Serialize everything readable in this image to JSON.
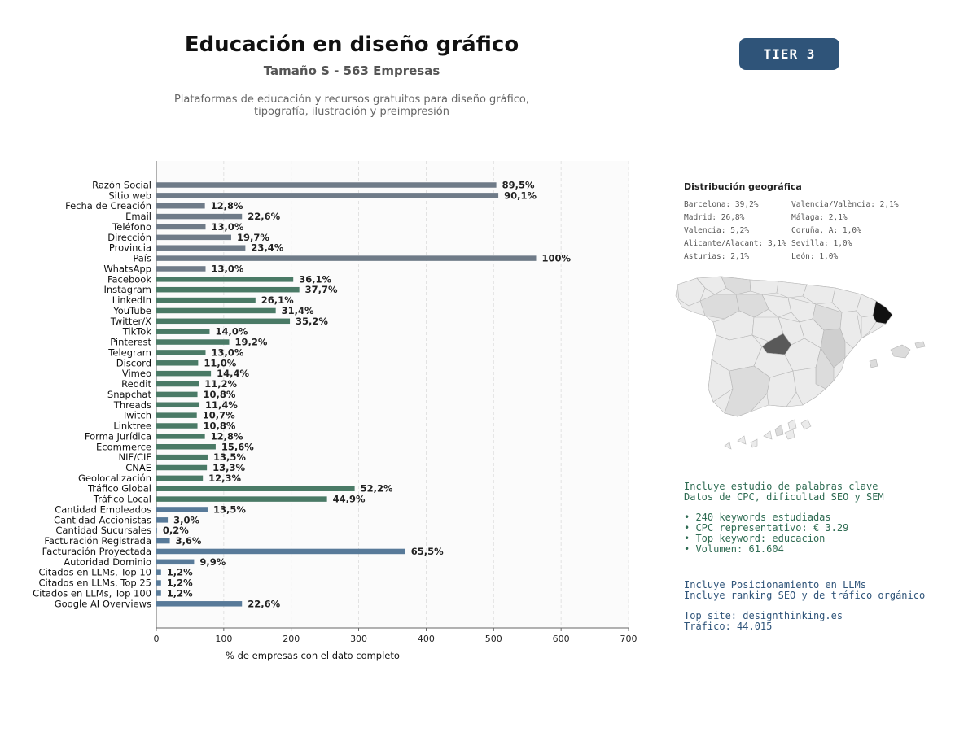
{
  "header": {
    "title": "Educación en diseño gráfico",
    "subtitle": "Tamaño S - 563 Empresas",
    "description_line1": "Plataformas de educación y recursos gratuitos para diseño gráfico,",
    "description_line2": "tipografía, ilustración y preimpresión",
    "tier": "TIER 3"
  },
  "colors": {
    "gray": "#6f7b88",
    "green": "#4a7a66",
    "blue": "#587a99",
    "tier_bg": "#2f5479",
    "map_fill": "#ebebeb",
    "map_stroke": "#b5b5b5"
  },
  "chart_data": {
    "type": "bar",
    "orientation": "horizontal",
    "xlabel": "% de empresas con el dato completo",
    "ylabel": "",
    "xlim": [
      0,
      700
    ],
    "xticks": [
      0,
      100,
      200,
      300,
      400,
      500,
      600,
      700
    ],
    "grid": "vertical dashed",
    "categories": [
      "Razón Social",
      "Sitio web",
      "Fecha de Creación",
      "Email",
      "Teléfono",
      "Dirección",
      "Provincia",
      "País",
      "WhatsApp",
      "Facebook",
      "Instagram",
      "LinkedIn",
      "YouTube",
      "Twitter/X",
      "TikTok",
      "Pinterest",
      "Telegram",
      "Discord",
      "Vimeo",
      "Reddit",
      "Snapchat",
      "Threads",
      "Twitch",
      "Linktree",
      "Forma Jurídica",
      "Ecommerce",
      "NIF/CIF",
      "CNAE",
      "Geolocalización",
      "Tráfico Global",
      "Tráfico Local",
      "Cantidad Empleados",
      "Cantidad Accionistas",
      "Cantidad Sucursales",
      "Facturación Registrada",
      "Facturación Proyectada",
      "Autoridad Dominio",
      "Citados en LLMs, Top 10",
      "Citados en LLMs, Top 25",
      "Citados en LLMs, Top 100",
      "Google AI Overviews"
    ],
    "values": [
      504,
      507,
      72,
      127,
      73,
      111,
      132,
      563,
      73,
      203,
      212,
      147,
      177,
      198,
      79,
      108,
      73,
      62,
      81,
      63,
      61,
      64,
      60,
      61,
      72,
      88,
      76,
      75,
      69,
      294,
      253,
      76,
      17,
      1,
      20,
      369,
      56,
      7,
      7,
      7,
      127
    ],
    "labels": [
      "89,5%",
      "90,1%",
      "12,8%",
      "22,6%",
      "13,0%",
      "19,7%",
      "23,4%",
      "100%",
      "13,0%",
      "36,1%",
      "37,7%",
      "26,1%",
      "31,4%",
      "35,2%",
      "14,0%",
      "19,2%",
      "13,0%",
      "11,0%",
      "14,4%",
      "11,2%",
      "10,8%",
      "11,4%",
      "10,7%",
      "10,8%",
      "12,8%",
      "15,6%",
      "13,5%",
      "13,3%",
      "12,3%",
      "52,2%",
      "44,9%",
      "13,5%",
      "3,0%",
      "0,2%",
      "3,6%",
      "65,5%",
      "9,9%",
      "1,2%",
      "1,2%",
      "1,2%",
      "22,6%"
    ],
    "groups": [
      "gray",
      "gray",
      "gray",
      "gray",
      "gray",
      "gray",
      "gray",
      "gray",
      "gray",
      "green",
      "green",
      "green",
      "green",
      "green",
      "green",
      "green",
      "green",
      "green",
      "green",
      "green",
      "green",
      "green",
      "green",
      "green",
      "green",
      "green",
      "green",
      "green",
      "green",
      "green",
      "green",
      "blue",
      "blue",
      "blue",
      "blue",
      "blue",
      "blue",
      "blue",
      "blue",
      "blue",
      "blue"
    ]
  },
  "geo": {
    "title": "Distribución geográfica",
    "items": [
      "Barcelona: 39,2%",
      "Valencia/València: 2,1%",
      "Madrid: 26,8%",
      "Málaga: 2,1%",
      "Valencia: 5,2%",
      "Coruña, A: 1,0%",
      "Alicante/Alacant: 3,1%",
      "Sevilla: 1,0%",
      "Asturias: 2,1%",
      "León: 1,0%"
    ]
  },
  "keywords": {
    "line1": "Incluye estudio de palabras clave",
    "line2": "Datos de CPC, dificultad SEO y SEM",
    "bullet1": "• 240 keywords estudiadas",
    "bullet2": "• CPC representativo: € 3.29",
    "bullet3": "• Top keyword: educacion",
    "bullet4": "• Volumen: 61.604"
  },
  "llm": {
    "line1": "Incluye Posicionamiento en LLMs",
    "line2": "Incluye ranking SEO y de tráfico orgánico",
    "top_site": "Top site: designthinking.es",
    "traffic": "Tráfico: 44.015"
  }
}
